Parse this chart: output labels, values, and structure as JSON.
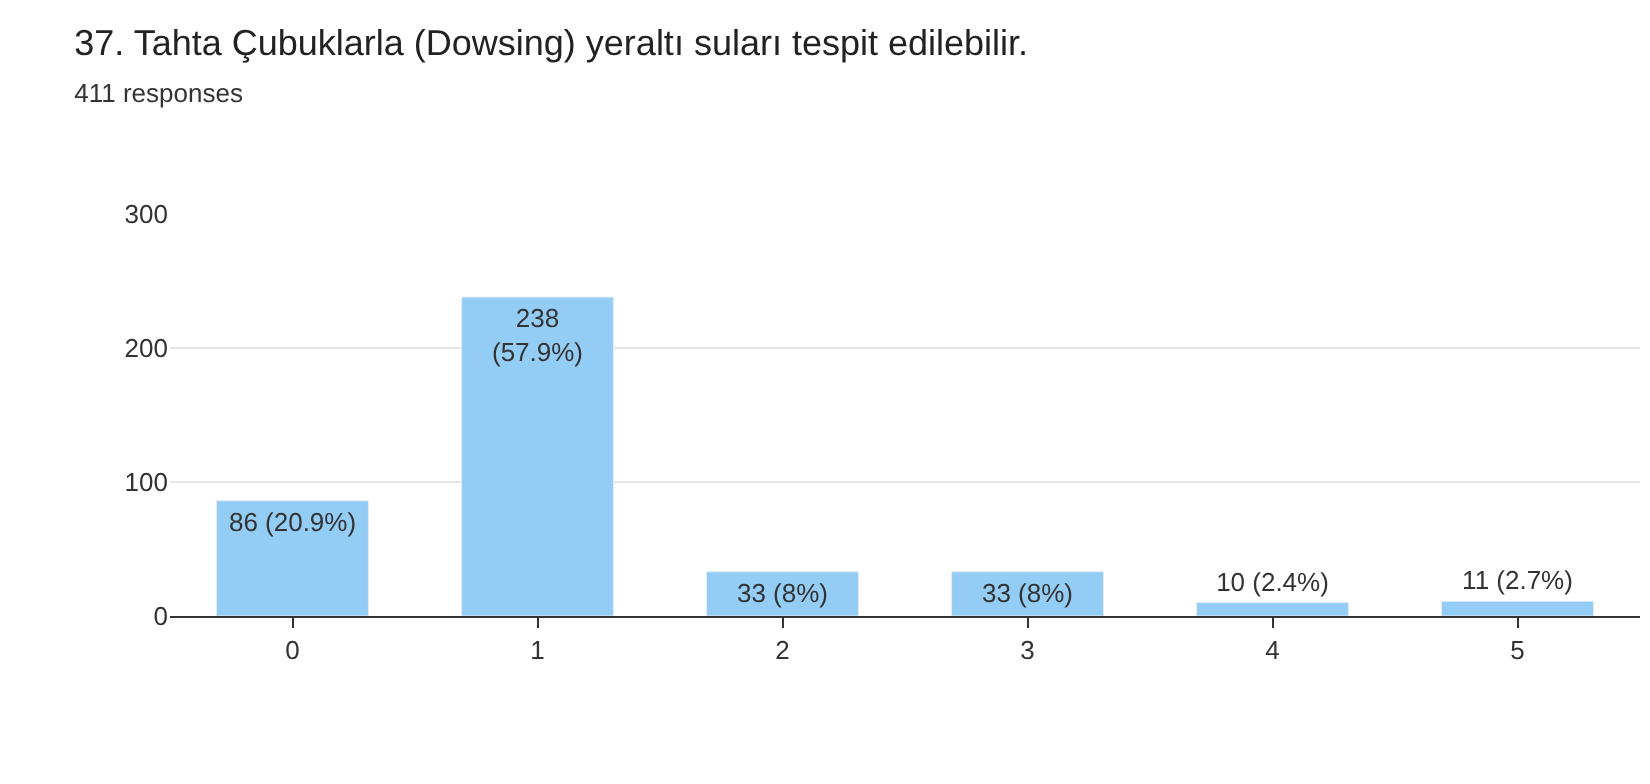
{
  "chart_data": {
    "type": "bar",
    "title": "37. Tahta Çubuklarla (Dowsing) yeraltı suları tespit edilebilir.",
    "subtitle": "411 responses",
    "categories": [
      "0",
      "1",
      "2",
      "3",
      "4",
      "5"
    ],
    "values": [
      86,
      238,
      33,
      33,
      10,
      11
    ],
    "value_labels": [
      "86 (20.9%)",
      "238\n(57.9%)",
      "33 (8%)",
      "33 (8%)",
      "10 (2.4%)",
      "11 (2.7%)"
    ],
    "color": "#93cdf5",
    "ylim": [
      0,
      300
    ],
    "yticks": [
      0,
      100,
      200,
      300
    ],
    "grid": "y",
    "legend": false
  }
}
